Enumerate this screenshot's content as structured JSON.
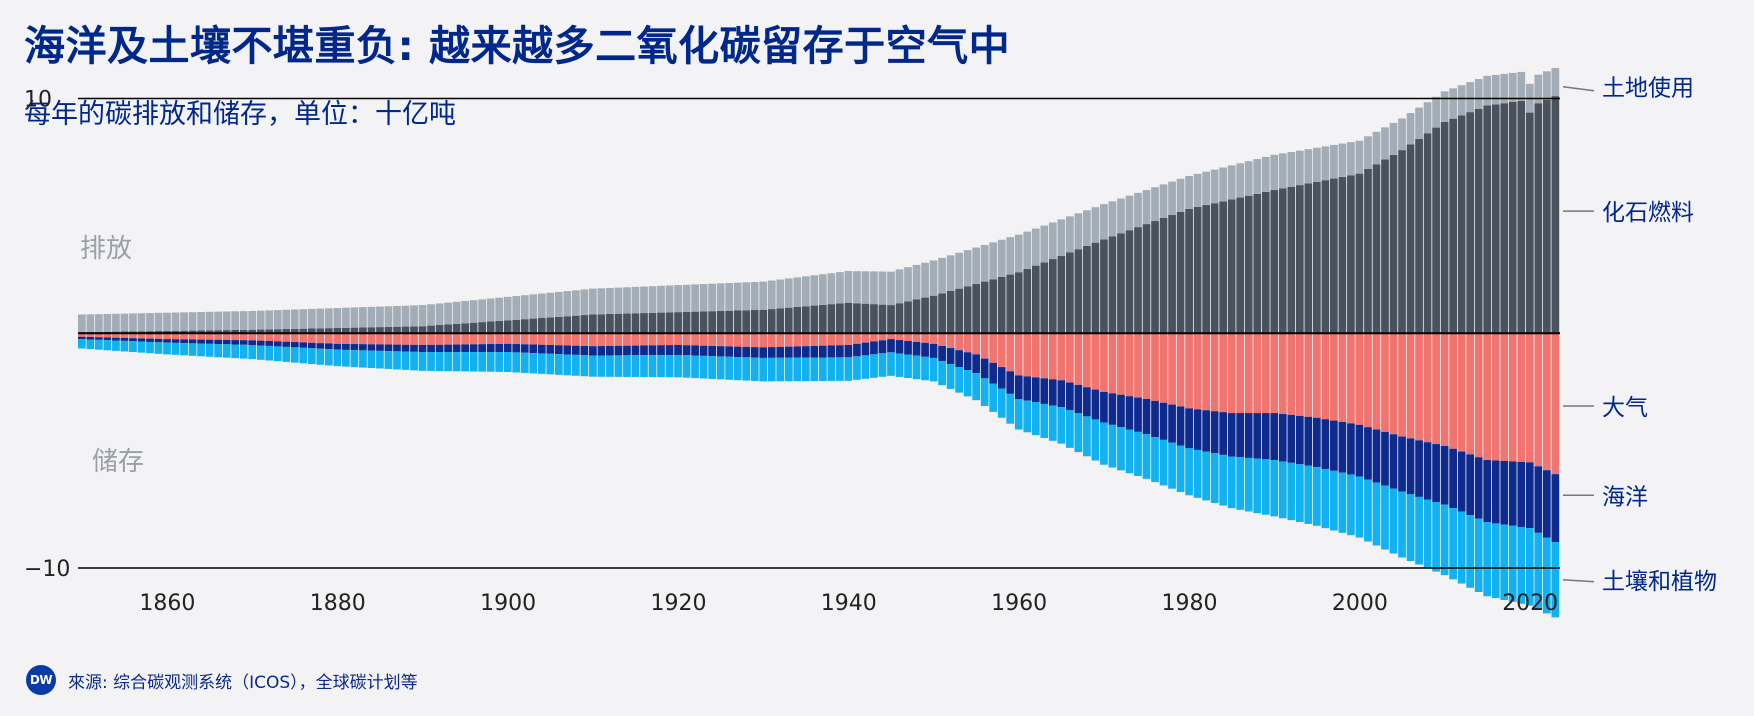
{
  "header": {
    "title": "海洋及土壤不堪重负: 越来越多二氧化碳留存于空气中",
    "subtitle": "每年的碳排放和储存，单位：十亿吨"
  },
  "footer": {
    "logo_text": "DW",
    "source": "來源: 综合碳观测系统（ICOS），全球碳计划等"
  },
  "colors": {
    "land_use": "#a3adb8",
    "fossil": "#4a525d",
    "atmosphere": "#f07470",
    "ocean": "#0d2a8c",
    "land_sink": "#12b2f0",
    "axis": "#000000",
    "text": "#00288a",
    "region_label": "#9aa0a8"
  },
  "chart_data": {
    "type": "bar",
    "stacking": "diverging",
    "title": "海洋及土壤不堪重负: 越来越多二氧化碳留存于空气中",
    "subtitle": "每年的碳排放和储存，单位：十亿吨",
    "x_start": 1850,
    "x_end": 2023,
    "xlim": [
      1850,
      2023
    ],
    "ylim": [
      -12,
      11
    ],
    "y_ticks": [
      10,
      -10
    ],
    "y_tick_labels": [
      "10",
      "−10"
    ],
    "x_ticks": [
      1860,
      1880,
      1900,
      1920,
      1940,
      1960,
      1980,
      2000,
      2020
    ],
    "region_labels": {
      "emission": "排放",
      "storage": "储存"
    },
    "series": [
      {
        "key": "fossil",
        "name": "化石燃料",
        "side": "emission",
        "anchors": [
          [
            1850,
            0.05
          ],
          [
            1870,
            0.15
          ],
          [
            1890,
            0.3
          ],
          [
            1910,
            0.8
          ],
          [
            1920,
            0.9
          ],
          [
            1930,
            1.0
          ],
          [
            1940,
            1.3
          ],
          [
            1945,
            1.2
          ],
          [
            1950,
            1.6
          ],
          [
            1960,
            2.6
          ],
          [
            1970,
            4.0
          ],
          [
            1980,
            5.3
          ],
          [
            1990,
            6.1
          ],
          [
            2000,
            6.8
          ],
          [
            2005,
            7.8
          ],
          [
            2010,
            9.0
          ],
          [
            2015,
            9.7
          ],
          [
            2019,
            9.9
          ],
          [
            2020,
            9.4
          ],
          [
            2021,
            9.8
          ],
          [
            2023,
            10.1
          ]
        ]
      },
      {
        "key": "land_use",
        "name": "土地使用",
        "side": "emission",
        "anchors": [
          [
            1850,
            0.75
          ],
          [
            1870,
            0.8
          ],
          [
            1890,
            0.9
          ],
          [
            1910,
            1.1
          ],
          [
            1930,
            1.2
          ],
          [
            1950,
            1.5
          ],
          [
            1960,
            1.6
          ],
          [
            1970,
            1.5
          ],
          [
            1980,
            1.4
          ],
          [
            1990,
            1.5
          ],
          [
            2000,
            1.4
          ],
          [
            2010,
            1.3
          ],
          [
            2023,
            1.2
          ]
        ]
      },
      {
        "key": "atmosphere",
        "name": "大气",
        "side": "storage",
        "anchors": [
          [
            1850,
            -0.15
          ],
          [
            1860,
            -0.25
          ],
          [
            1870,
            -0.3
          ],
          [
            1880,
            -0.45
          ],
          [
            1890,
            -0.5
          ],
          [
            1900,
            -0.45
          ],
          [
            1910,
            -0.55
          ],
          [
            1920,
            -0.5
          ],
          [
            1930,
            -0.6
          ],
          [
            1940,
            -0.5
          ],
          [
            1945,
            -0.25
          ],
          [
            1950,
            -0.45
          ],
          [
            1955,
            -0.9
          ],
          [
            1960,
            -1.8
          ],
          [
            1965,
            -2.0
          ],
          [
            1970,
            -2.5
          ],
          [
            1975,
            -2.8
          ],
          [
            1980,
            -3.2
          ],
          [
            1985,
            -3.4
          ],
          [
            1990,
            -3.4
          ],
          [
            1995,
            -3.6
          ],
          [
            2000,
            -3.9
          ],
          [
            2005,
            -4.4
          ],
          [
            2010,
            -4.8
          ],
          [
            2015,
            -5.4
          ],
          [
            2020,
            -5.5
          ],
          [
            2023,
            -6.0
          ]
        ]
      },
      {
        "key": "ocean",
        "name": "海洋",
        "side": "storage",
        "anchors": [
          [
            1850,
            -0.1
          ],
          [
            1870,
            -0.2
          ],
          [
            1890,
            -0.3
          ],
          [
            1910,
            -0.4
          ],
          [
            1930,
            -0.45
          ],
          [
            1950,
            -0.6
          ],
          [
            1960,
            -1.0
          ],
          [
            1970,
            -1.3
          ],
          [
            1980,
            -1.7
          ],
          [
            1990,
            -2.0
          ],
          [
            2000,
            -2.2
          ],
          [
            2010,
            -2.5
          ],
          [
            2020,
            -2.8
          ],
          [
            2023,
            -2.9
          ]
        ]
      },
      {
        "key": "land_sink",
        "name": "土壤和植物",
        "side": "storage",
        "anchors": [
          [
            1850,
            -0.4
          ],
          [
            1870,
            -0.6
          ],
          [
            1890,
            -0.8
          ],
          [
            1910,
            -0.9
          ],
          [
            1930,
            -1.0
          ],
          [
            1950,
            -1.0
          ],
          [
            1960,
            -1.3
          ],
          [
            1970,
            -1.8
          ],
          [
            1980,
            -2.0
          ],
          [
            1990,
            -2.4
          ],
          [
            2000,
            -2.6
          ],
          [
            2010,
            -3.0
          ],
          [
            2020,
            -3.3
          ],
          [
            2023,
            -3.2
          ]
        ]
      }
    ],
    "legend": [
      {
        "key": "land_use",
        "label": "土地使用",
        "y": 10.5
      },
      {
        "key": "fossil",
        "label": "化石燃料",
        "y": 5.2
      },
      {
        "key": "atmosphere",
        "label": "大气",
        "y": -3.1
      },
      {
        "key": "ocean",
        "label": "海洋",
        "y": -6.9
      },
      {
        "key": "land_sink",
        "label": "土壤和植物",
        "y": -10.5
      }
    ]
  }
}
